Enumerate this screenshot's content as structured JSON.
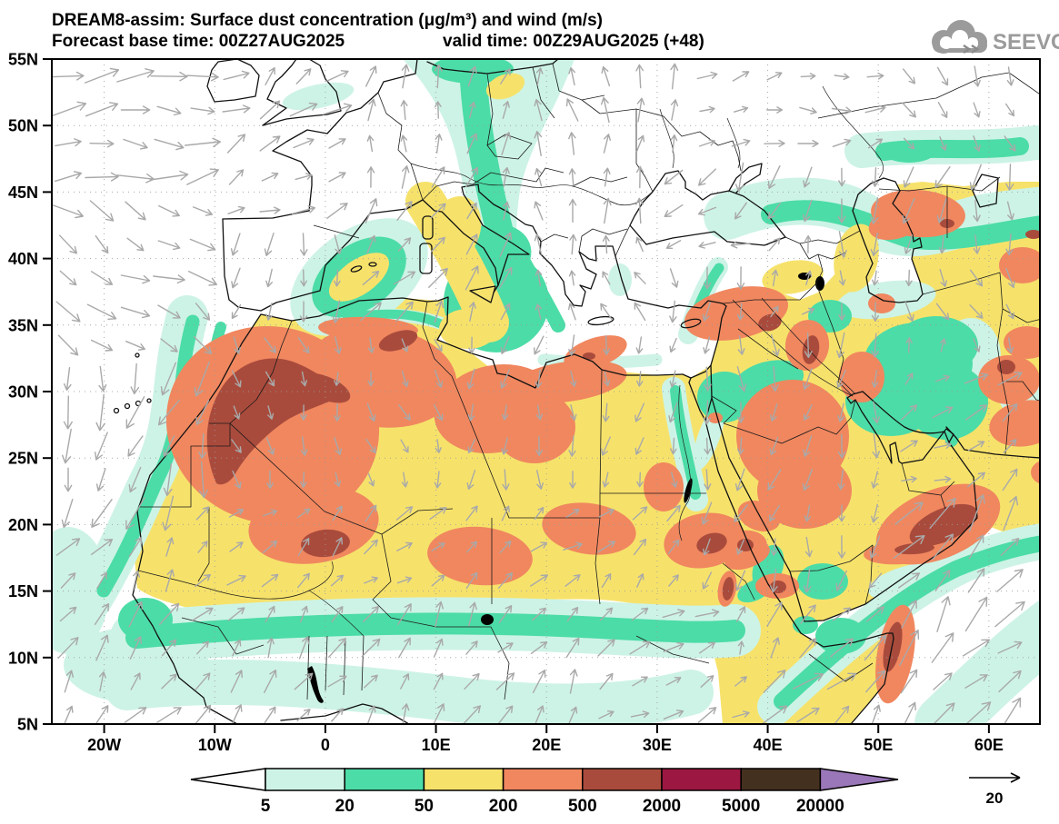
{
  "title": {
    "line1": "DREAM8-assim: Surface dust concentration (μg/m³) and wind (m/s)",
    "base_time": "Forecast base time: 00Z27AUG2025",
    "valid_time": "valid time: 00Z29AUG2025 (+48)"
  },
  "logo": {
    "text": "SEEVCCC"
  },
  "axes": {
    "lat_labels": [
      "55N",
      "50N",
      "45N",
      "40N",
      "35N",
      "30N",
      "25N",
      "20N",
      "15N",
      "10N",
      "5N"
    ],
    "lon_labels": [
      "20W",
      "10W",
      "0",
      "10E",
      "20E",
      "30E",
      "40E",
      "50E",
      "60E"
    ]
  },
  "colorbar": {
    "levels": [
      "5",
      "20",
      "50",
      "200",
      "500",
      "2000",
      "5000",
      "20000"
    ],
    "segment_colors": [
      "#ffffff",
      "#cdf3e6",
      "#4cdca7",
      "#f6e26b",
      "#f0875f",
      "#a94b3c",
      "#9c1742",
      "#44301e",
      "#9a77b8"
    ]
  },
  "wind": {
    "ref_label": "20",
    "arrow_color": "#a9a9a9",
    "systems": [
      [
        -26,
        44,
        10,
        55.5,
        2,
        0.95
      ],
      [
        -6,
        49.5,
        13,
        55.5,
        40,
        0.7
      ],
      [
        -9,
        43.5,
        4,
        49.5,
        30,
        0.55
      ],
      [
        -26,
        33,
        -9,
        44,
        -30,
        0.75
      ],
      [
        -26,
        19,
        -8,
        33,
        -107,
        0.9
      ],
      [
        -26,
        4,
        -12,
        19,
        55,
        0.65
      ],
      [
        -12,
        4,
        24,
        14.5,
        55,
        0.55
      ],
      [
        24,
        4,
        37,
        14.5,
        35,
        0.5
      ],
      [
        -13,
        14.5,
        36,
        23,
        42,
        0.4
      ],
      [
        -9,
        23,
        12,
        33.5,
        -75,
        0.35
      ],
      [
        12,
        22,
        34,
        33.5,
        -95,
        0.4
      ],
      [
        -9,
        33.5,
        3,
        43.5,
        -100,
        0.5
      ],
      [
        3,
        35,
        19,
        45.5,
        55,
        0.6
      ],
      [
        3,
        45.5,
        19,
        55.5,
        80,
        0.5
      ],
      [
        19,
        42,
        34,
        55.5,
        92,
        0.55
      ],
      [
        19,
        33.5,
        29,
        42,
        110,
        0.4
      ],
      [
        29,
        40,
        40,
        47,
        -160,
        0.5
      ],
      [
        36,
        42,
        50,
        50.5,
        -105,
        0.7
      ],
      [
        29,
        33.5,
        38,
        40,
        -85,
        0.45
      ],
      [
        34,
        27,
        50,
        33.5,
        -95,
        0.55
      ],
      [
        34,
        15,
        50,
        27,
        -105,
        0.5
      ],
      [
        50,
        21,
        58.5,
        29,
        28,
        0.45
      ],
      [
        40,
        4,
        52.5,
        13.5,
        48,
        0.8
      ],
      [
        52.5,
        4,
        66,
        21,
        48,
        1.0
      ],
      [
        58.5,
        21,
        66,
        31,
        42,
        0.6
      ],
      [
        44,
        33.5,
        58.5,
        41,
        -75,
        0.4
      ],
      [
        58.5,
        31,
        66,
        41,
        -60,
        0.4
      ],
      [
        45,
        41,
        66,
        48,
        -100,
        0.6
      ],
      [
        33,
        48,
        50,
        55.5,
        8,
        0.4
      ],
      [
        50,
        48,
        66,
        55.5,
        -60,
        0.4
      ]
    ]
  },
  "map": {
    "frame_color": "#000000",
    "coast_color": "#111111",
    "grid_color": "#9a9a9a",
    "logo_color": "#9b9b9b"
  }
}
